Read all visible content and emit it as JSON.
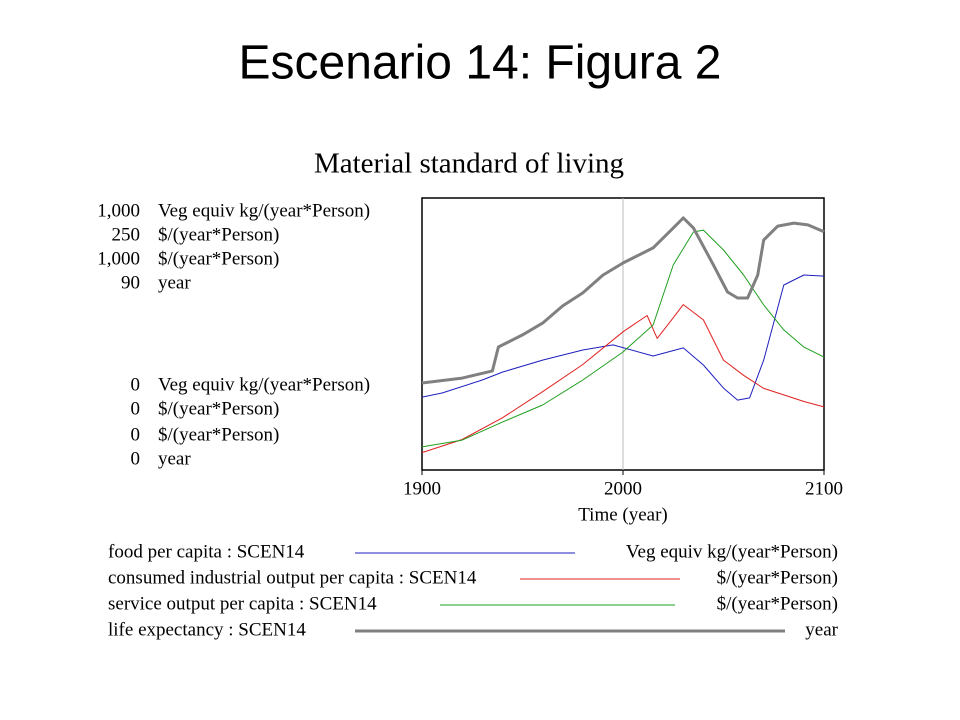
{
  "slide_title": "Escenario 14: Figura 2",
  "chart_data": {
    "type": "line",
    "title": "Material standard of living",
    "xlabel": "Time (year)",
    "xlim": [
      1900,
      2100
    ],
    "xticks": [
      1900,
      2000,
      2100
    ],
    "grid": true,
    "series": [
      {
        "name": "food per capita : SCEN14",
        "unit": "Veg equiv kg/(year*Person)",
        "color": "#1f1fbf",
        "width": 1,
        "ylim": [
          0,
          1000
        ],
        "yticks": [
          0,
          {
            "value": 1000,
            "label": "1,000"
          }
        ],
        "x": [
          1900,
          1910,
          1930,
          1940,
          1960,
          1980,
          1995,
          2015,
          2030,
          2040,
          2050,
          2057,
          2063,
          2070,
          2080,
          2090,
          2100
        ],
        "values": [
          268,
          283,
          331,
          360,
          404,
          441,
          460,
          419,
          449,
          386,
          301,
          257,
          265,
          404,
          680,
          717,
          713
        ]
      },
      {
        "name": "consumed industrial output per capita : SCEN14",
        "unit": "$/(year*Person)",
        "color": "#e02020",
        "width": 1,
        "ylim": [
          0,
          250
        ],
        "yticks": [
          0,
          250
        ],
        "x": [
          1900,
          1920,
          1940,
          1960,
          1980,
          2000,
          2012,
          2017,
          2025,
          2030,
          2040,
          2050,
          2060,
          2070,
          2080,
          2090,
          2100
        ],
        "values": [
          16,
          28,
          48,
          72,
          97,
          127,
          142,
          121,
          140,
          152,
          138,
          101,
          87,
          75,
          69,
          63,
          58
        ]
      },
      {
        "name": "service output per capita : SCEN14",
        "unit": "$/(year*Person)",
        "color": "#1f9f1f",
        "width": 1,
        "ylim": [
          0,
          1000
        ],
        "yticks": [
          0,
          {
            "value": 1000,
            "label": "1,000"
          }
        ],
        "x": [
          1900,
          1920,
          1940,
          1960,
          1980,
          2000,
          2015,
          2025,
          2035,
          2040,
          2050,
          2060,
          2070,
          2080,
          2090,
          2100
        ],
        "values": [
          85,
          110,
          176,
          239,
          331,
          434,
          533,
          754,
          875,
          882,
          809,
          717,
          607,
          515,
          452,
          415
        ]
      },
      {
        "name": "life expectancy : SCEN14",
        "unit": "year",
        "color": "#808080",
        "width": 3,
        "ylim": [
          0,
          90
        ],
        "yticks": [
          0,
          90
        ],
        "x": [
          1900,
          1920,
          1935,
          1938,
          1950,
          1960,
          1970,
          1980,
          1990,
          2000,
          2015,
          2025,
          2030,
          2035,
          2045,
          2052,
          2057,
          2062,
          2067,
          2070,
          2077,
          2085,
          2092,
          2100
        ],
        "values": [
          28.8,
          30.4,
          32.8,
          40.7,
          44.7,
          48.6,
          54.3,
          58.6,
          64.5,
          68.5,
          73.5,
          80.1,
          83.4,
          80.1,
          67.8,
          58.9,
          56.9,
          56.9,
          64.5,
          76.1,
          80.7,
          81.7,
          81.1,
          78.8
        ]
      }
    ]
  }
}
